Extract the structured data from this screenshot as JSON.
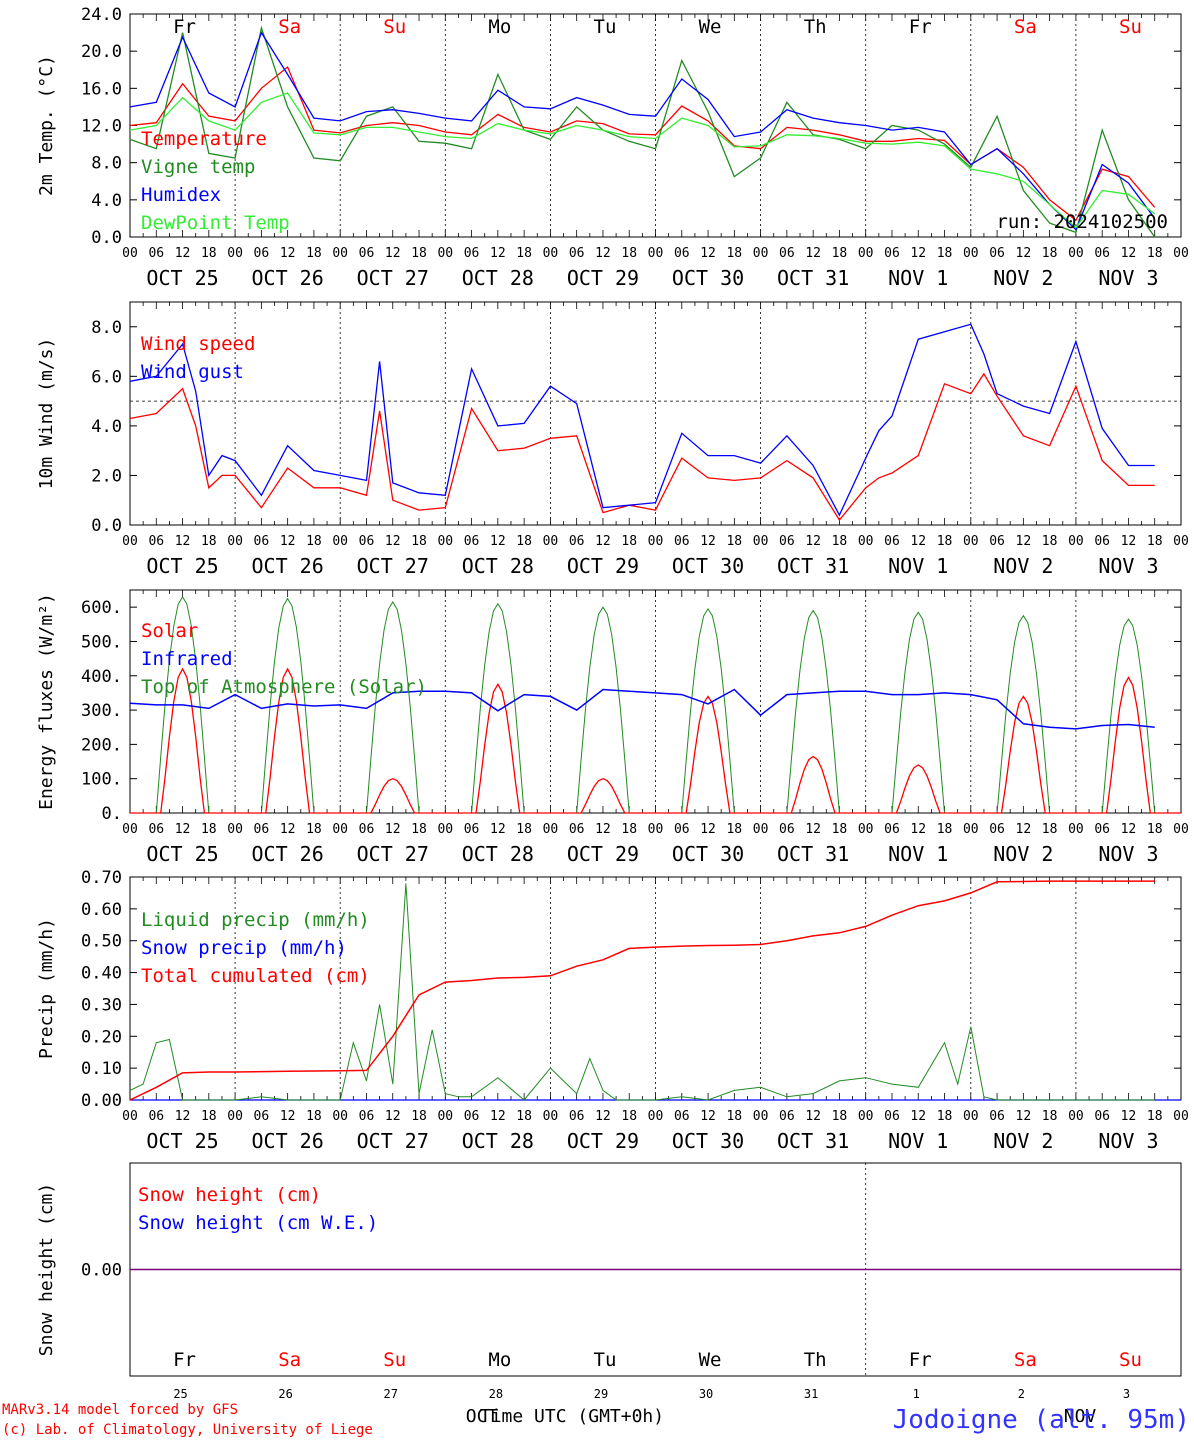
{
  "days": [
    {
      "dow": "Fr",
      "date": "OCT 25",
      "num": "25",
      "weekend": false
    },
    {
      "dow": "Sa",
      "date": "OCT 26",
      "num": "26",
      "weekend": true
    },
    {
      "dow": "Su",
      "date": "OCT 27",
      "num": "27",
      "weekend": true
    },
    {
      "dow": "Mo",
      "date": "OCT 28",
      "num": "28",
      "weekend": false
    },
    {
      "dow": "Tu",
      "date": "OCT 29",
      "num": "29",
      "weekend": false
    },
    {
      "dow": "We",
      "date": "OCT 30",
      "num": "30",
      "weekend": false
    },
    {
      "dow": "Th",
      "date": "OCT 31",
      "num": "31",
      "weekend": false
    },
    {
      "dow": "Fr",
      "date": "NOV  1",
      "num": "1",
      "weekend": false
    },
    {
      "dow": "Sa",
      "date": "NOV  2",
      "num": "2",
      "weekend": true
    },
    {
      "dow": "Su",
      "date": "NOV  3",
      "num": "3",
      "weekend": true
    }
  ],
  "hour_ticks": [
    "00",
    "06",
    "12",
    "18"
  ],
  "last_hour_tick": "00",
  "colors": {
    "red": "#ff0000",
    "green": "#228b22",
    "blue": "#0000ff",
    "lime": "#33ee33",
    "purple": "#7f007f",
    "weekend": "#ff0000",
    "text": "#000000"
  },
  "run_label": "run: 2024102500",
  "footer": {
    "credit1": "MARv3.14 model forced by GFS",
    "credit2": "(c) Lab. of Climatology, University of Liege",
    "xlabel": "Time UTC (GMT+0h)",
    "month_left": "OCT",
    "month_right": "NOV",
    "station": "Jodoigne (alt. 95m)"
  },
  "chart_data": [
    {
      "type": "line",
      "ylabel": "2m Temp. (°C)",
      "ylim": [
        0,
        24
      ],
      "yticks": [
        "0.0",
        "4.0",
        "8.0",
        "12.0",
        "16.0",
        "20.0",
        "24.0"
      ],
      "x_hours": [
        0,
        6,
        12,
        18,
        24,
        30,
        36,
        42,
        48,
        54,
        60,
        66,
        72,
        78,
        84,
        90,
        96,
        102,
        108,
        114,
        120,
        126,
        132,
        138,
        144,
        150,
        156,
        162,
        168,
        174,
        180,
        186,
        192,
        198,
        204,
        210,
        216,
        222,
        228,
        234
      ],
      "series": [
        {
          "name": "Temperature",
          "color": "red",
          "values": [
            12,
            12.3,
            16.5,
            13,
            12.5,
            16,
            18.3,
            11.5,
            11.2,
            12,
            12.3,
            12,
            11.3,
            11,
            13.2,
            11.8,
            11.3,
            12.5,
            12.2,
            11.1,
            11,
            14.1,
            12.5,
            9.8,
            9.5,
            11.8,
            11.5,
            11,
            10.3,
            10.3,
            10.6,
            10.4,
            7.8,
            9.5,
            7.5,
            4,
            1.8,
            7.3,
            6.5,
            3.2
          ]
        },
        {
          "name": "Vigne temp",
          "color": "green",
          "values": [
            10.5,
            9.5,
            22,
            9,
            8.5,
            22.5,
            14,
            8.5,
            8.2,
            13,
            14,
            10.3,
            10.1,
            9.5,
            17.5,
            11.5,
            10.5,
            14,
            11.5,
            10.3,
            9.5,
            19,
            13.5,
            6.5,
            8.5,
            14.5,
            11,
            10.5,
            9.5,
            12,
            11.5,
            10,
            7.5,
            13,
            5,
            1.5,
            0.5,
            11.5,
            4,
            0
          ]
        },
        {
          "name": "Humidex",
          "color": "blue",
          "values": [
            14,
            14.5,
            21.5,
            15.5,
            14,
            22,
            17.5,
            12.8,
            12.5,
            13.5,
            13.7,
            13.3,
            12.8,
            12.5,
            15.8,
            14,
            13.8,
            15,
            14.2,
            13.2,
            13,
            17,
            14.8,
            10.8,
            11.3,
            13.7,
            12.8,
            12.3,
            12,
            11.5,
            11.8,
            11.3,
            7.8,
            9.5,
            6.8,
            3.5,
            0.8,
            7.8,
            5.8,
            2
          ]
        },
        {
          "name": "DewPoint Temp",
          "color": "lime",
          "values": [
            11.5,
            12,
            15,
            12.5,
            11.5,
            14.5,
            15.5,
            11.2,
            11,
            11.8,
            11.8,
            11.3,
            10.8,
            10.6,
            12.2,
            11.5,
            11.1,
            12,
            11.5,
            10.8,
            10.6,
            12.8,
            12,
            9.7,
            9.8,
            11,
            10.9,
            10.6,
            10.1,
            10,
            10.2,
            9.8,
            7.3,
            6.8,
            6,
            3.5,
            1,
            5,
            4.6,
            2.5
          ]
        }
      ]
    },
    {
      "type": "line",
      "ylabel": "10m Wind (m/s)",
      "ylim": [
        0,
        9
      ],
      "yticks": [
        "0.0",
        "2.0",
        "4.0",
        "6.0",
        "8.0"
      ],
      "threshold": 5,
      "x_hours": [
        0,
        6,
        12,
        15,
        18,
        21,
        24,
        30,
        36,
        42,
        48,
        54,
        57,
        60,
        66,
        72,
        78,
        84,
        90,
        96,
        102,
        108,
        114,
        120,
        126,
        132,
        138,
        144,
        150,
        156,
        162,
        168,
        171,
        174,
        180,
        186,
        192,
        195,
        198,
        204,
        210,
        216,
        222,
        228,
        234
      ],
      "series": [
        {
          "name": "Wind speed",
          "color": "red",
          "values": [
            4.3,
            4.5,
            5.5,
            4,
            1.5,
            2,
            2,
            0.7,
            2.3,
            1.5,
            1.5,
            1.2,
            4.6,
            1,
            0.6,
            0.7,
            4.7,
            3,
            3.1,
            3.5,
            3.6,
            0.5,
            0.8,
            0.6,
            2.7,
            1.9,
            1.8,
            1.9,
            2.6,
            1.9,
            0.2,
            1.5,
            1.9,
            2.1,
            2.8,
            5.7,
            5.3,
            6.1,
            5.2,
            3.6,
            3.2,
            5.6,
            2.6,
            1.6,
            1.6
          ]
        },
        {
          "name": "Wind gust",
          "color": "blue",
          "values": [
            5.8,
            6,
            7.3,
            5.4,
            2,
            2.8,
            2.6,
            1.2,
            3.2,
            2.2,
            2,
            1.8,
            6.6,
            1.7,
            1.3,
            1.2,
            6.3,
            4,
            4.1,
            5.6,
            4.9,
            0.7,
            0.8,
            0.9,
            3.7,
            2.8,
            2.8,
            2.5,
            3.6,
            2.4,
            0.4,
            2.7,
            3.8,
            4.4,
            7.5,
            7.8,
            8.1,
            6.9,
            5.3,
            4.8,
            4.5,
            7.4,
            3.9,
            2.4,
            2.4
          ]
        }
      ]
    },
    {
      "type": "line",
      "ylabel": "Energy fluxes (W/m²)",
      "ylim": [
        0,
        650
      ],
      "yticks": [
        "0.",
        "100.",
        "200.",
        "300.",
        "400.",
        "500.",
        "600."
      ],
      "diurnal_peaks": {
        "Solar": [
          420,
          420,
          100,
          375,
          100,
          340,
          165,
          140,
          340,
          395
        ],
        "Top of Atmosphere (Solar)": [
          630,
          625,
          615,
          610,
          600,
          595,
          590,
          585,
          575,
          565
        ]
      },
      "series": [
        {
          "name": "Solar",
          "color": "red",
          "values": [
            420,
            420,
            100,
            375,
            100,
            340,
            165,
            140,
            340,
            395
          ]
        },
        {
          "name": "Infrared",
          "color": "blue",
          "x_hours": [
            0,
            6,
            12,
            18,
            24,
            30,
            36,
            42,
            48,
            54,
            60,
            66,
            72,
            78,
            84,
            90,
            96,
            102,
            108,
            114,
            120,
            126,
            132,
            138,
            144,
            150,
            156,
            162,
            168,
            174,
            180,
            186,
            192,
            198,
            204,
            210,
            216,
            222,
            228,
            234
          ],
          "values": [
            320,
            315,
            315,
            305,
            345,
            305,
            318,
            312,
            315,
            305,
            350,
            355,
            355,
            350,
            298,
            345,
            340,
            300,
            360,
            355,
            350,
            345,
            318,
            360,
            285,
            345,
            350,
            355,
            355,
            345,
            345,
            350,
            345,
            330,
            260,
            250,
            245,
            255,
            258,
            250
          ]
        },
        {
          "name": "Top of Atmosphere (Solar)",
          "color": "green",
          "values": [
            630,
            625,
            615,
            610,
            600,
            595,
            590,
            585,
            575,
            565
          ]
        }
      ]
    },
    {
      "type": "line",
      "ylabel": "Precip (mm/h)",
      "ylim": [
        0,
        0.7
      ],
      "yticks": [
        "0.00",
        "0.10",
        "0.20",
        "0.30",
        "0.40",
        "0.50",
        "0.60",
        "0.70"
      ],
      "series": [
        {
          "name": "Liquid precip (mm/h)",
          "color": "green",
          "x_hours": [
            0,
            3,
            6,
            9,
            12,
            15,
            18,
            24,
            30,
            36,
            42,
            48,
            51,
            54,
            57,
            60,
            63,
            66,
            69,
            72,
            75,
            78,
            84,
            90,
            96,
            99,
            102,
            105,
            108,
            111,
            114,
            120,
            126,
            132,
            138,
            144,
            150,
            156,
            162,
            168,
            174,
            180,
            186,
            189,
            192,
            195,
            198,
            204,
            210,
            216,
            222,
            228,
            234
          ],
          "values": [
            0.03,
            0.05,
            0.18,
            0.19,
            0,
            0,
            0,
            0,
            0.01,
            0,
            0,
            0,
            0.18,
            0.06,
            0.3,
            0.05,
            0.68,
            0.02,
            0.22,
            0.02,
            0.01,
            0.01,
            0.07,
            0,
            0.1,
            0.06,
            0.02,
            0.13,
            0.03,
            0,
            0,
            0,
            0.01,
            0,
            0.03,
            0.04,
            0.01,
            0.02,
            0.06,
            0.07,
            0.05,
            0.04,
            0.18,
            0.05,
            0.23,
            0.01,
            0,
            0,
            0,
            0,
            0,
            0,
            0
          ]
        },
        {
          "name": "Snow precip (mm/h)",
          "color": "blue",
          "values": [
            0,
            0
          ]
        },
        {
          "name": "Total cumulated (cm)",
          "color": "red",
          "x_hours": [
            0,
            6,
            12,
            18,
            24,
            36,
            48,
            54,
            60,
            66,
            72,
            78,
            84,
            90,
            96,
            102,
            108,
            114,
            120,
            126,
            132,
            138,
            144,
            150,
            156,
            162,
            168,
            174,
            180,
            186,
            192,
            198,
            204,
            210,
            216,
            222,
            228,
            234
          ],
          "values": [
            0,
            0.04,
            0.085,
            0.088,
            0.088,
            0.09,
            0.092,
            0.093,
            0.2,
            0.33,
            0.37,
            0.375,
            0.383,
            0.385,
            0.39,
            0.42,
            0.44,
            0.476,
            0.48,
            0.483,
            0.485,
            0.486,
            0.488,
            0.5,
            0.515,
            0.525,
            0.545,
            0.58,
            0.61,
            0.625,
            0.65,
            0.685,
            0.686,
            0.687,
            0.687,
            0.687,
            0.687,
            0.687
          ]
        }
      ]
    },
    {
      "type": "line",
      "ylabel": "Snow height (cm)",
      "yticks": [
        "0.00"
      ],
      "series": [
        {
          "name": "Snow height (cm)",
          "color": "red",
          "values": [
            0,
            0
          ]
        },
        {
          "name": "Snow height (cm W.E.)",
          "color": "blue",
          "values": [
            0,
            0
          ]
        }
      ]
    }
  ]
}
